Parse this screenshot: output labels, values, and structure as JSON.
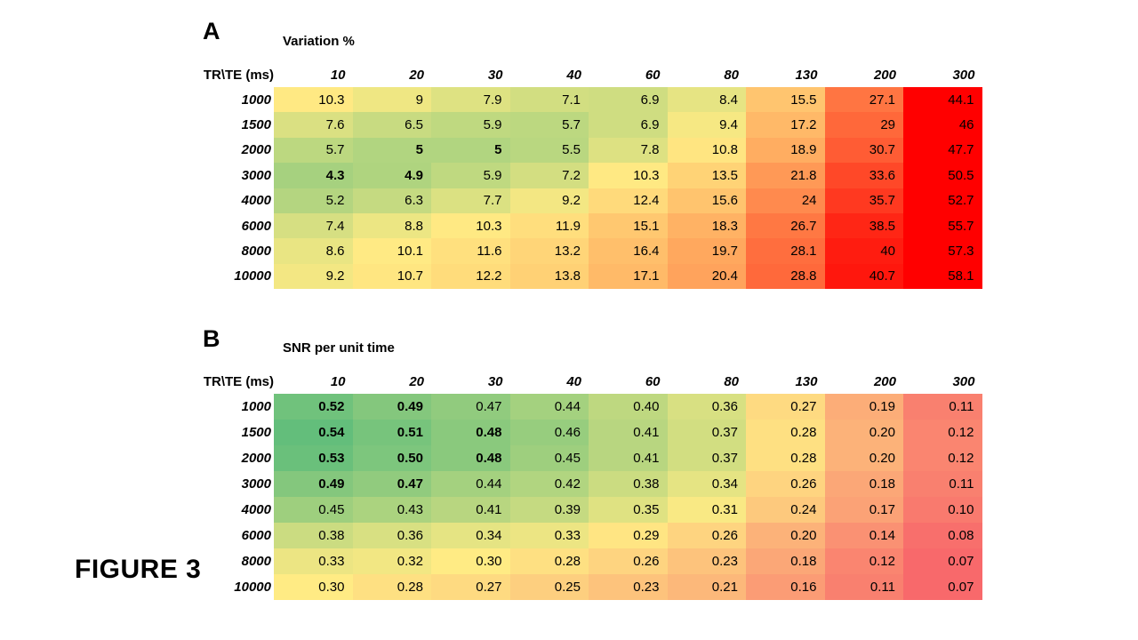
{
  "figure_label": "FIGURE 3",
  "chart_data": [
    {
      "type": "heatmap",
      "panel_label": "A",
      "title": "Variation %",
      "corner_label": "TR\\TE (ms)",
      "xlabel": "TE (ms)",
      "ylabel": "TR (ms)",
      "columns": [
        "10",
        "20",
        "30",
        "40",
        "60",
        "80",
        "130",
        "200",
        "300"
      ],
      "rows": [
        "1000",
        "1500",
        "2000",
        "3000",
        "4000",
        "6000",
        "8000",
        "10000"
      ],
      "values": [
        [
          10.3,
          9,
          7.9,
          7.1,
          6.9,
          8.4,
          15.5,
          27.1,
          44.1
        ],
        [
          7.6,
          6.5,
          5.9,
          5.7,
          6.9,
          9.4,
          17.2,
          29,
          46
        ],
        [
          5.7,
          5,
          5,
          5.5,
          7.8,
          10.8,
          18.9,
          30.7,
          47.7
        ],
        [
          4.3,
          4.9,
          5.9,
          7.2,
          10.3,
          13.5,
          21.8,
          33.6,
          50.5
        ],
        [
          5.2,
          6.3,
          7.7,
          9.2,
          12.4,
          15.6,
          24,
          35.7,
          52.7
        ],
        [
          7.4,
          8.8,
          10.3,
          11.9,
          15.1,
          18.3,
          26.7,
          38.5,
          55.7
        ],
        [
          8.6,
          10.1,
          11.6,
          13.2,
          16.4,
          19.7,
          28.1,
          40,
          57.3
        ],
        [
          9.2,
          10.7,
          12.2,
          13.8,
          17.1,
          20.4,
          28.8,
          40.7,
          58.1
        ]
      ],
      "bold_cells": [
        [
          2,
          1
        ],
        [
          2,
          2
        ],
        [
          3,
          0
        ],
        [
          3,
          1
        ]
      ],
      "decimals": null,
      "color_scale": {
        "anchors": [
          0,
          10,
          44
        ],
        "colors": [
          "#63BE7B",
          "#FFEB84",
          "#FF0000"
        ],
        "note": "low=green, mid=yellow, high=red"
      },
      "legend": "none",
      "grid": "off"
    },
    {
      "type": "heatmap",
      "panel_label": "B",
      "title": "SNR per unit time",
      "corner_label": "TR\\TE (ms)",
      "xlabel": "TE (ms)",
      "ylabel": "TR (ms)",
      "columns": [
        "10",
        "20",
        "30",
        "40",
        "60",
        "80",
        "130",
        "200",
        "300"
      ],
      "rows": [
        "1000",
        "1500",
        "2000",
        "3000",
        "4000",
        "6000",
        "8000",
        "10000"
      ],
      "values": [
        [
          0.52,
          0.49,
          0.47,
          0.44,
          0.4,
          0.36,
          0.27,
          0.19,
          0.11
        ],
        [
          0.54,
          0.51,
          0.48,
          0.46,
          0.41,
          0.37,
          0.28,
          0.2,
          0.12
        ],
        [
          0.53,
          0.5,
          0.48,
          0.45,
          0.41,
          0.37,
          0.28,
          0.2,
          0.12
        ],
        [
          0.49,
          0.47,
          0.44,
          0.42,
          0.38,
          0.34,
          0.26,
          0.18,
          0.11
        ],
        [
          0.45,
          0.43,
          0.41,
          0.39,
          0.35,
          0.31,
          0.24,
          0.17,
          0.1
        ],
        [
          0.38,
          0.36,
          0.34,
          0.33,
          0.29,
          0.26,
          0.2,
          0.14,
          0.08
        ],
        [
          0.33,
          0.32,
          0.3,
          0.28,
          0.26,
          0.23,
          0.18,
          0.12,
          0.07
        ],
        [
          0.3,
          0.28,
          0.27,
          0.25,
          0.23,
          0.21,
          0.16,
          0.11,
          0.07
        ]
      ],
      "bold_cells": [
        [
          0,
          0
        ],
        [
          0,
          1
        ],
        [
          1,
          0
        ],
        [
          1,
          1
        ],
        [
          1,
          2
        ],
        [
          2,
          0
        ],
        [
          2,
          1
        ],
        [
          2,
          2
        ],
        [
          3,
          0
        ],
        [
          3,
          1
        ]
      ],
      "decimals": 2,
      "color_scale": {
        "anchors": [
          0.07,
          0.3,
          0.54
        ],
        "colors": [
          "#F8696B",
          "#FFEB84",
          "#63BE7B"
        ],
        "note": "low=red, mid=yellow, high=green"
      },
      "legend": "none",
      "grid": "off"
    }
  ]
}
